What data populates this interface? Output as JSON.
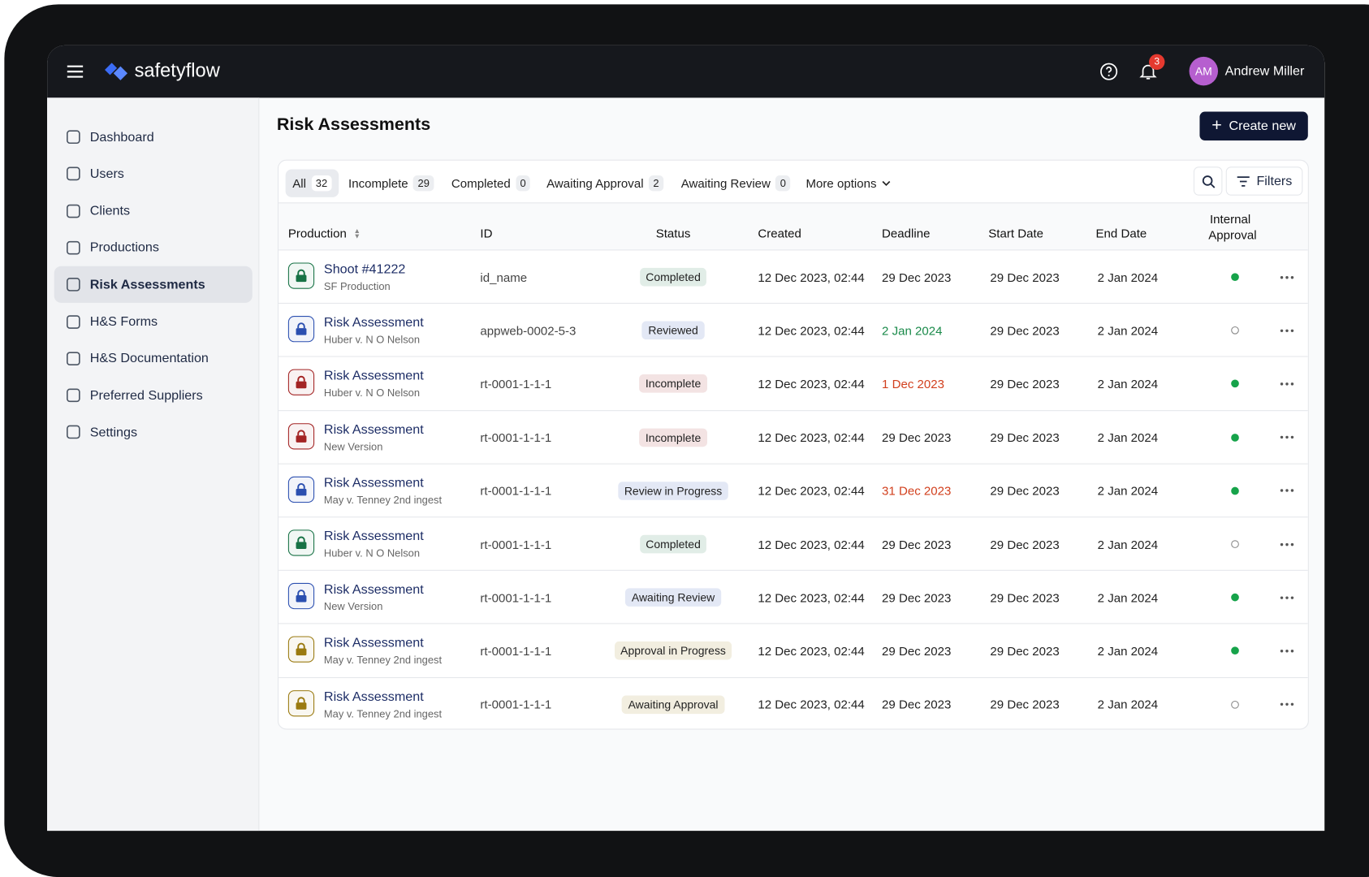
{
  "header": {
    "brand": "safetyflow",
    "notifications": "3",
    "user": {
      "initials": "AM",
      "name": "Andrew Miller"
    }
  },
  "nav": [
    "Dashboard",
    "Users",
    "Clients",
    "Productions",
    "Risk Assessments",
    "H&S Forms",
    "H&S Documentation",
    "Preferred Suppliers",
    "Settings"
  ],
  "active_nav": 4,
  "page": {
    "title": "Risk Assessments",
    "create_button": "Create new"
  },
  "tabs": [
    {
      "label": "All",
      "count": "32"
    },
    {
      "label": "Incomplete",
      "count": "29"
    },
    {
      "label": "Completed",
      "count": "0"
    },
    {
      "label": "Awaiting Approval",
      "count": "2"
    },
    {
      "label": "Awaiting Review",
      "count": "0"
    }
  ],
  "more_options": "More options",
  "filters": "Filters",
  "table": {
    "columns": [
      "Production",
      "ID",
      "Status",
      "Created",
      "Deadline",
      "Start Date",
      "End Date",
      "Internal Approval"
    ],
    "rows": [
      {
        "title": "Shoot #41222",
        "subtitle": "SF Production",
        "id": "id_name",
        "status": "Completed",
        "tone": "#177245",
        "created": "12 Dec 2023, 02:44",
        "deadline": "29 Dec 2023",
        "deadline_color": "#222222",
        "start": "29 Dec 2023",
        "end": "2 Jan 2024",
        "approved": true
      },
      {
        "title": "Risk Assessment",
        "subtitle": "Huber v. N O Nelson",
        "id": "appweb-0002-5-3",
        "status": "Reviewed",
        "tone": "#2b4fb0",
        "created": "12 Dec 2023, 02:44",
        "deadline": "2 Jan 2024",
        "deadline_color": "#1a8a4a",
        "start": "29 Dec 2023",
        "end": "2 Jan 2024",
        "approved": false
      },
      {
        "title": "Risk Assessment",
        "subtitle": "Huber v. N O Nelson",
        "id": "rt-0001-1-1-1",
        "status": "Incomplete",
        "tone": "#a32424",
        "created": "12 Dec 2023, 02:44",
        "deadline": "1 Dec 2023",
        "deadline_color": "#d2401e",
        "start": "29 Dec 2023",
        "end": "2 Jan 2024",
        "approved": true
      },
      {
        "title": "Risk Assessment",
        "subtitle": "New Version",
        "id": "rt-0001-1-1-1",
        "status": "Incomplete",
        "tone": "#a32424",
        "created": "12 Dec 2023, 02:44",
        "deadline": "29 Dec 2023",
        "deadline_color": "#222222",
        "start": "29 Dec 2023",
        "end": "2 Jan 2024",
        "approved": true
      },
      {
        "title": "Risk Assessment",
        "subtitle": "May v. Tenney 2nd ingest",
        "id": "rt-0001-1-1-1",
        "status": "Review in Progress",
        "tone": "#2b4fb0",
        "created": "12 Dec 2023, 02:44",
        "deadline": "31 Dec 2023",
        "deadline_color": "#d2401e",
        "start": "29 Dec 2023",
        "end": "2 Jan 2024",
        "approved": true
      },
      {
        "title": "Risk Assessment",
        "subtitle": "Huber v. N O Nelson",
        "id": "rt-0001-1-1-1",
        "status": "Completed",
        "tone": "#177245",
        "created": "12 Dec 2023, 02:44",
        "deadline": "29 Dec 2023",
        "deadline_color": "#222222",
        "start": "29 Dec 2023",
        "end": "2 Jan 2024",
        "approved": false
      },
      {
        "title": "Risk Assessment",
        "subtitle": "New Version",
        "id": "rt-0001-1-1-1",
        "status": "Awaiting Review",
        "tone": "#2b4fb0",
        "created": "12 Dec 2023, 02:44",
        "deadline": "29 Dec 2023",
        "deadline_color": "#222222",
        "start": "29 Dec 2023",
        "end": "2 Jan 2024",
        "approved": true
      },
      {
        "title": "Risk Assessment",
        "subtitle": "May v. Tenney 2nd ingest",
        "id": "rt-0001-1-1-1",
        "status": "Approval in Progress",
        "tone": "#9a7a10",
        "created": "12 Dec 2023, 02:44",
        "deadline": "29 Dec 2023",
        "deadline_color": "#222222",
        "start": "29 Dec 2023",
        "end": "2 Jan 2024",
        "approved": true
      },
      {
        "title": "Risk Assessment",
        "subtitle": "May v. Tenney 2nd ingest",
        "id": "rt-0001-1-1-1",
        "status": "Awaiting Approval",
        "tone": "#9a7a10",
        "created": "12 Dec 2023, 02:44",
        "deadline": "29 Dec 2023",
        "deadline_color": "#222222",
        "start": "29 Dec 2023",
        "end": "2 Jan 2024",
        "approved": false
      }
    ]
  }
}
